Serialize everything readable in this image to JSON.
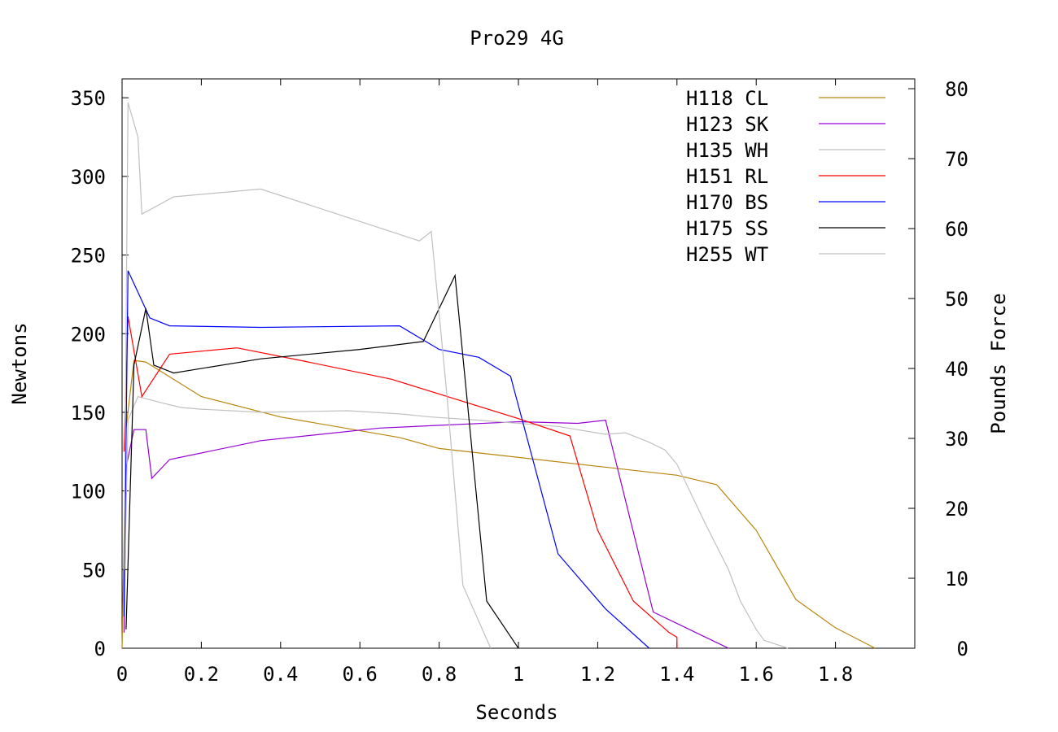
{
  "chart_data": {
    "type": "line",
    "title": "Pro29 4G",
    "xlabel": "Seconds",
    "ylabel": "Newtons",
    "y2label": "Pounds Force",
    "xlim": [
      0,
      2.0
    ],
    "ylim": [
      0,
      362
    ],
    "y2lim": [
      0,
      81.4
    ],
    "xticks": [
      "0",
      "0.2",
      "0.4",
      "0.6",
      "0.8",
      "1",
      "1.2",
      "1.4",
      "1.6",
      "1.8"
    ],
    "xtick_values": [
      0,
      0.2,
      0.4,
      0.6,
      0.8,
      1.0,
      1.2,
      1.4,
      1.6,
      1.8
    ],
    "yticks": [
      "0",
      "50",
      "100",
      "150",
      "200",
      "250",
      "300",
      "350"
    ],
    "ytick_values": [
      0,
      50,
      100,
      150,
      200,
      250,
      300,
      350
    ],
    "y2ticks": [
      "0",
      "10",
      "20",
      "30",
      "40",
      "50",
      "60",
      "70",
      "80"
    ],
    "y2tick_values": [
      0,
      10,
      20,
      30,
      40,
      50,
      60,
      70,
      80
    ],
    "legend_position": "top-right",
    "series": [
      {
        "name": "H118 CL",
        "color": "#b8860b",
        "x": [
          0,
          0.01,
          0.03,
          0.06,
          0.2,
          0.4,
          0.7,
          0.8,
          1.4,
          1.5,
          1.6,
          1.7,
          1.8,
          1.9
        ],
        "y": [
          0,
          140,
          183,
          182,
          160,
          147,
          134,
          127,
          110,
          104,
          75,
          31,
          13,
          0
        ]
      },
      {
        "name": "H123 SK",
        "color": "#9400d3",
        "x": [
          0.005,
          0.01,
          0.03,
          0.06,
          0.075,
          0.12,
          0.35,
          0.65,
          1.0,
          1.15,
          1.22,
          1.34,
          1.53
        ],
        "y": [
          10,
          115,
          139,
          139,
          108,
          120,
          132,
          140,
          144,
          143,
          145,
          23,
          0
        ]
      },
      {
        "name": "H135 WH",
        "color": "#c0c0c0",
        "x": [
          0.005,
          0.015,
          0.04,
          0.1,
          0.15,
          0.2,
          0.35,
          0.57,
          0.7,
          0.78,
          0.9,
          1.0,
          1.1,
          1.22,
          1.27,
          1.33,
          1.37,
          1.4,
          1.47,
          1.53,
          1.56,
          1.6,
          1.62,
          1.68
        ],
        "y": [
          30,
          145,
          160,
          156,
          153,
          152,
          150,
          151,
          149,
          147,
          145,
          143,
          141,
          136,
          137,
          131,
          126,
          117,
          80,
          50,
          30,
          12,
          5,
          0
        ]
      },
      {
        "name": "H151 RL",
        "color": "#ff0000",
        "x": [
          0.005,
          0.015,
          0.05,
          0.12,
          0.29,
          0.45,
          0.68,
          1.0,
          1.13,
          1.2,
          1.29,
          1.38,
          1.4,
          1.4
        ],
        "y": [
          125,
          211,
          160,
          187,
          191,
          183,
          171,
          146,
          135,
          75,
          30,
          10,
          7,
          0
        ]
      },
      {
        "name": "H170 BS",
        "color": "#0000ff",
        "x": [
          0.005,
          0.015,
          0.07,
          0.12,
          0.35,
          0.7,
          0.8,
          0.9,
          0.98,
          1.1,
          1.22,
          1.33
        ],
        "y": [
          20,
          240,
          210,
          205,
          204,
          205,
          190,
          185,
          173,
          60,
          25,
          0
        ]
      },
      {
        "name": "H175 SS",
        "color": "#000000",
        "x": [
          0.01,
          0.03,
          0.06,
          0.08,
          0.13,
          0.35,
          0.6,
          0.76,
          0.84,
          0.92,
          1.0
        ],
        "y": [
          12,
          180,
          216,
          180,
          175,
          184,
          190,
          195,
          237,
          30,
          0
        ]
      },
      {
        "name": "H255 WT",
        "color": "#c0c0c0",
        "x": [
          0.005,
          0.015,
          0.04,
          0.05,
          0.13,
          0.35,
          0.75,
          0.78,
          0.82,
          0.86,
          0.93
        ],
        "y": [
          50,
          347,
          325,
          276,
          287,
          292,
          259,
          265,
          160,
          40,
          0
        ]
      }
    ]
  }
}
